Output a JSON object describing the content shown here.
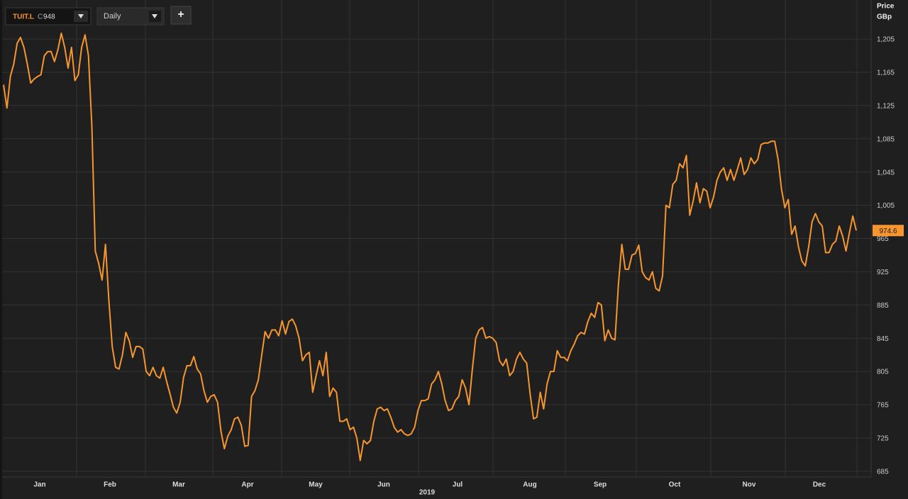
{
  "toolbar": {
    "ticker": "TUIT.L",
    "close_prefix": "C",
    "interval": "Daily",
    "add_button": "+"
  },
  "chart_data": {
    "type": "line",
    "y_axis_title": "Price",
    "y_axis_unit": "GBp",
    "x_labels": [
      "Jan",
      "Feb",
      "Mar",
      "Apr",
      "May",
      "Jun",
      "Jul",
      "Aug",
      "Sep",
      "Oct",
      "Nov",
      "Dec"
    ],
    "year_label": "2019",
    "ylim": [
      678,
      1252
    ],
    "yticks": [
      685,
      725,
      765,
      805,
      845,
      885,
      925,
      965,
      {
        "value": 1005,
        "label": "1,005"
      },
      {
        "value": 1045,
        "label": "1,045"
      },
      {
        "value": 1085,
        "label": "1,085"
      },
      {
        "value": 1125,
        "label": "1,125"
      },
      {
        "value": 1165,
        "label": "1,165"
      },
      {
        "value": 1205,
        "label": "1,205"
      }
    ],
    "grid": true,
    "series": [
      {
        "name": "TUIT.L",
        "color": "#f7962f",
        "values": [
          1150,
          1122,
          1160,
          1175,
          1200,
          1207,
          1195,
          1175,
          1152,
          1157,
          1160,
          1162,
          1185,
          1190,
          1190,
          1178,
          1192,
          1212,
          1195,
          1170,
          1195,
          1155,
          1162,
          1195,
          1210,
          1185,
          1100,
          950,
          935,
          915,
          958,
          890,
          835,
          810,
          808,
          825,
          852,
          842,
          822,
          835,
          835,
          832,
          805,
          800,
          810,
          800,
          797,
          810,
          793,
          778,
          762,
          755,
          768,
          798,
          812,
          812,
          823,
          808,
          802,
          782,
          768,
          775,
          777,
          768,
          733,
          712,
          727,
          735,
          748,
          750,
          740,
          715,
          716,
          775,
          782,
          795,
          825,
          853,
          845,
          855,
          855,
          848,
          866,
          850,
          865,
          868,
          860,
          845,
          818,
          825,
          828,
          780,
          800,
          818,
          800,
          828,
          775,
          785,
          780,
          745,
          745,
          748,
          735,
          738,
          725,
          698,
          722,
          718,
          722,
          745,
          760,
          762,
          758,
          760,
          750,
          738,
          732,
          735,
          730,
          728,
          730,
          738,
          758,
          770,
          770,
          772,
          790,
          795,
          805,
          790,
          770,
          758,
          760,
          770,
          775,
          795,
          785,
          765,
          808,
          845,
          855,
          858,
          845,
          847,
          845,
          840,
          818,
          812,
          820,
          800,
          805,
          820,
          828,
          820,
          815,
          778,
          748,
          750,
          780,
          760,
          790,
          805,
          805,
          830,
          822,
          822,
          818,
          830,
          838,
          848,
          852,
          850,
          865,
          875,
          870,
          888,
          885,
          842,
          855,
          845,
          843,
          910,
          958,
          928,
          928,
          945,
          947,
          957,
          925,
          918,
          915,
          925,
          905,
          902,
          920,
          1005,
          1002,
          1030,
          1035,
          1055,
          1050,
          1065,
          993,
          1010,
          1032,
          1008,
          1025,
          1022,
          1002,
          1015,
          1035,
          1045,
          1050,
          1035,
          1048,
          1035,
          1048,
          1062,
          1042,
          1048,
          1062,
          1055,
          1060,
          1078,
          1080,
          1080,
          1082,
          1082,
          1060,
          1025,
          1002,
          1012,
          970,
          980,
          955,
          938,
          932,
          955,
          985,
          995,
          985,
          980,
          948,
          948,
          958,
          962,
          980,
          968,
          950,
          972,
          992,
          974.6
        ]
      }
    ]
  }
}
